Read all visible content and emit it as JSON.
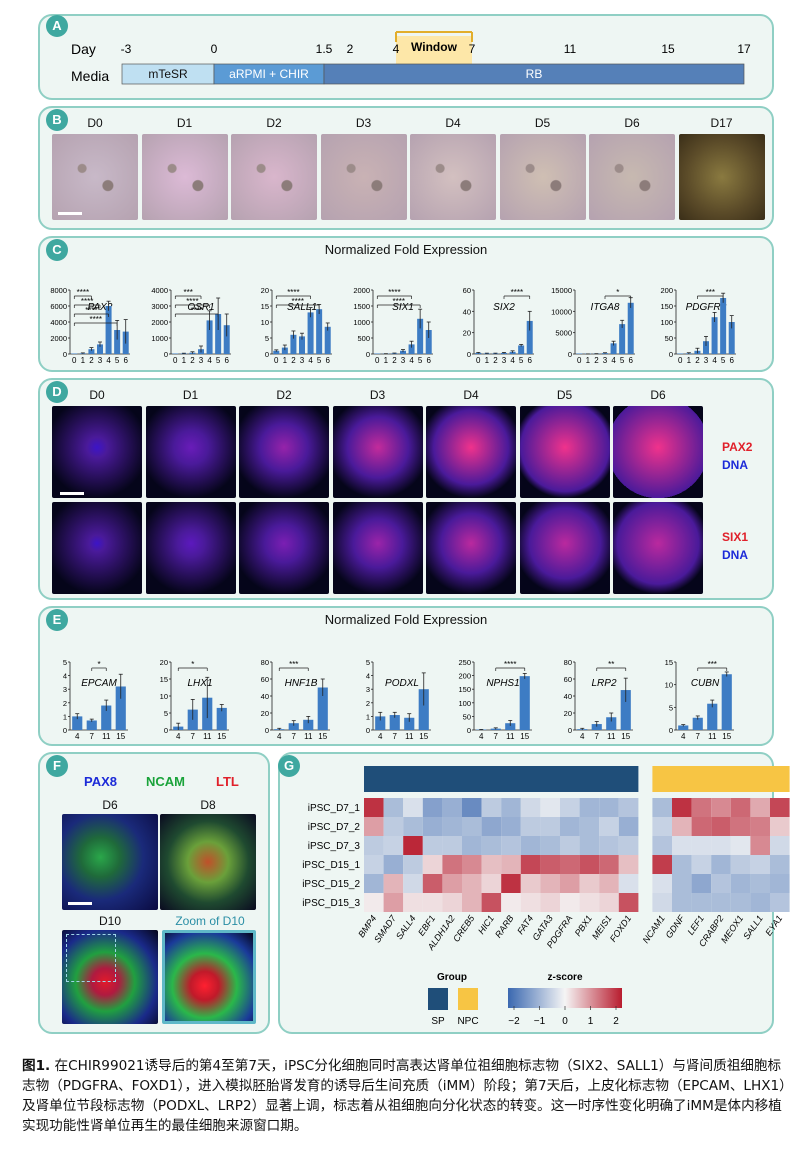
{
  "panel_labels": {
    "a": "A",
    "b": "B",
    "c": "C",
    "d": "D",
    "e": "E",
    "f": "F",
    "g": "G"
  },
  "timeline": {
    "day_label": "Day",
    "media_label": "Media",
    "days": [
      "-3",
      "0",
      "1.5",
      "2",
      "4",
      "7",
      "11",
      "15",
      "17"
    ],
    "window_label": "Window",
    "media": [
      {
        "label": "mTeSR",
        "color": "#bfe0f2"
      },
      {
        "label": "aRPMI + CHIR",
        "color": "#5b9bd5"
      },
      {
        "label": "RB",
        "color": "#5580b8"
      }
    ],
    "window_color": "#fde7a8"
  },
  "brightfield": {
    "days": [
      "D0",
      "D1",
      "D2",
      "D3",
      "D4",
      "D5",
      "D6",
      "D17"
    ]
  },
  "chart_data": [
    {
      "type": "bar",
      "panel": "C",
      "title": "Normalized Fold Expression",
      "gene": "PAX2",
      "categories": [
        "0",
        "1",
        "2",
        "3",
        "4",
        "5",
        "6"
      ],
      "values": [
        0,
        80,
        600,
        1200,
        6000,
        3000,
        2800
      ],
      "errors": [
        0,
        60,
        200,
        300,
        600,
        1200,
        1500
      ],
      "ylim": [
        0,
        8000
      ],
      "yticks": [
        "0",
        "2000",
        "4000",
        "6000",
        "8000"
      ],
      "sig": [
        [
          "0",
          "2",
          "****"
        ],
        [
          "0",
          "3",
          "****"
        ],
        [
          "0",
          "4",
          "****"
        ],
        [
          "0",
          "5",
          "****"
        ]
      ]
    },
    {
      "type": "bar",
      "panel": "C",
      "gene": "OSR1",
      "categories": [
        "0",
        "1",
        "2",
        "3",
        "4",
        "5",
        "6"
      ],
      "values": [
        0,
        30,
        80,
        300,
        2100,
        2500,
        1800
      ],
      "errors": [
        0,
        20,
        60,
        200,
        600,
        1000,
        700
      ],
      "ylim": [
        0,
        4000
      ],
      "yticks": [
        "0",
        "1000",
        "2000",
        "3000",
        "4000"
      ],
      "sig": [
        [
          "0",
          "3",
          "***"
        ],
        [
          "0",
          "4",
          "****"
        ],
        [
          "0",
          "5",
          "****"
        ]
      ]
    },
    {
      "type": "bar",
      "panel": "C",
      "gene": "SALL1",
      "categories": [
        "0",
        "1",
        "2",
        "3",
        "4",
        "5",
        "6"
      ],
      "values": [
        1,
        2,
        6,
        5.5,
        13,
        14,
        8.5
      ],
      "errors": [
        0.3,
        0.8,
        1.2,
        1.0,
        1.5,
        1.5,
        1.2
      ],
      "ylim": [
        0,
        20
      ],
      "yticks": [
        "0",
        "5",
        "10",
        "15",
        "20"
      ],
      "sig": [
        [
          "0",
          "4",
          "****"
        ],
        [
          "0",
          "5",
          "****"
        ]
      ]
    },
    {
      "type": "bar",
      "panel": "C",
      "gene": "SIX1",
      "categories": [
        "0",
        "1",
        "2",
        "3",
        "4",
        "5",
        "6"
      ],
      "values": [
        0,
        5,
        20,
        100,
        300,
        1100,
        750
      ],
      "errors": [
        0,
        5,
        10,
        40,
        100,
        300,
        250
      ],
      "ylim": [
        0,
        2000
      ],
      "yticks": [
        "0",
        "500",
        "1000",
        "1500",
        "2000"
      ],
      "sig": [
        [
          "0",
          "4",
          "****"
        ],
        [
          "0",
          "5",
          "****"
        ]
      ]
    },
    {
      "type": "bar",
      "panel": "C",
      "gene": "SIX2",
      "categories": [
        "0",
        "1",
        "2",
        "3",
        "4",
        "5",
        "6"
      ],
      "values": [
        1,
        0.5,
        0.5,
        1,
        2,
        8,
        31
      ],
      "errors": [
        0.5,
        0.3,
        0.3,
        0.5,
        1,
        1,
        9
      ],
      "ylim": [
        0,
        60
      ],
      "yticks": [
        "0",
        "20",
        "40",
        "60"
      ],
      "sig": [
        [
          "3",
          "6",
          "****"
        ]
      ]
    },
    {
      "type": "bar",
      "panel": "C",
      "gene": "ITGA8",
      "categories": [
        "0",
        "1",
        "2",
        "3",
        "4",
        "5",
        "6"
      ],
      "values": [
        0,
        10,
        50,
        200,
        2500,
        7000,
        12000
      ],
      "errors": [
        0,
        10,
        30,
        100,
        500,
        900,
        1200
      ],
      "ylim": [
        0,
        15000
      ],
      "yticks": [
        "0",
        "5000",
        "10000",
        "15000"
      ],
      "sig": [
        [
          "3",
          "6",
          "*"
        ]
      ]
    },
    {
      "type": "bar",
      "panel": "C",
      "gene": "PDGFRα",
      "categories": [
        "0",
        "1",
        "2",
        "3",
        "4",
        "5",
        "6"
      ],
      "values": [
        0,
        2,
        10,
        40,
        115,
        175,
        100
      ],
      "errors": [
        0,
        2,
        8,
        15,
        15,
        15,
        20
      ],
      "ylim": [
        0,
        200
      ],
      "yticks": [
        "0",
        "50",
        "100",
        "150",
        "200"
      ],
      "sig": [
        [
          "2",
          "5",
          "***"
        ]
      ]
    },
    {
      "type": "bar",
      "panel": "E",
      "title": "Normalized Fold Expression",
      "gene": "EPCAM",
      "categories": [
        "4",
        "7",
        "11",
        "15"
      ],
      "values": [
        1,
        0.7,
        1.8,
        3.2
      ],
      "errors": [
        0.2,
        0.1,
        0.4,
        0.9
      ],
      "ylim": [
        0,
        5
      ],
      "yticks": [
        "0",
        "1",
        "2",
        "3",
        "4",
        "5"
      ],
      "sig": [
        [
          "7",
          "11",
          "*"
        ]
      ]
    },
    {
      "type": "bar",
      "panel": "E",
      "gene": "LHX1",
      "categories": [
        "4",
        "7",
        "11",
        "15"
      ],
      "values": [
        1,
        6,
        9.5,
        6.5
      ],
      "errors": [
        1,
        3,
        6,
        1
      ],
      "ylim": [
        0,
        20
      ],
      "yticks": [
        "0",
        "5",
        "10",
        "15",
        "20"
      ],
      "sig": [
        [
          "4",
          "11",
          "*"
        ]
      ]
    },
    {
      "type": "bar",
      "panel": "E",
      "gene": "HNF1B",
      "categories": [
        "4",
        "7",
        "11",
        "15"
      ],
      "values": [
        1,
        8,
        12,
        50
      ],
      "errors": [
        1,
        3,
        4,
        10
      ],
      "ylim": [
        0,
        80
      ],
      "yticks": [
        "0",
        "20",
        "40",
        "60",
        "80"
      ],
      "sig": [
        [
          "4",
          "11",
          "***"
        ]
      ]
    },
    {
      "type": "bar",
      "panel": "E",
      "gene": "PODXL",
      "categories": [
        "4",
        "7",
        "11",
        "15"
      ],
      "values": [
        1,
        1.1,
        0.9,
        3
      ],
      "errors": [
        0.3,
        0.2,
        0.3,
        1.2
      ],
      "ylim": [
        0,
        5
      ],
      "yticks": [
        "0",
        "1",
        "2",
        "3",
        "4",
        "5"
      ],
      "sig": []
    },
    {
      "type": "bar",
      "panel": "E",
      "gene": "NPHS1",
      "categories": [
        "4",
        "7",
        "11",
        "15"
      ],
      "values": [
        1,
        5,
        25,
        198
      ],
      "errors": [
        1,
        3,
        10,
        10
      ],
      "ylim": [
        0,
        250
      ],
      "yticks": [
        "0",
        "50",
        "100",
        "150",
        "200",
        "250"
      ],
      "sig": [
        [
          "7",
          "15",
          "****"
        ]
      ]
    },
    {
      "type": "bar",
      "panel": "E",
      "gene": "LRP2",
      "categories": [
        "4",
        "7",
        "11",
        "15"
      ],
      "values": [
        1,
        7,
        15,
        47
      ],
      "errors": [
        1,
        3,
        5,
        14
      ],
      "ylim": [
        0,
        80
      ],
      "yticks": [
        "0",
        "20",
        "40",
        "60",
        "80"
      ],
      "sig": [
        [
          "7",
          "15",
          "**"
        ]
      ]
    },
    {
      "type": "bar",
      "panel": "E",
      "gene": "CUBN",
      "categories": [
        "4",
        "7",
        "11",
        "15"
      ],
      "values": [
        1,
        2.7,
        5.8,
        12.3
      ],
      "errors": [
        0.2,
        0.4,
        0.8,
        0.5
      ],
      "ylim": [
        0,
        15
      ],
      "yticks": [
        "0",
        "5",
        "10",
        "15"
      ],
      "sig": [
        [
          "7",
          "15",
          "***"
        ]
      ]
    },
    {
      "type": "heatmap",
      "panel": "G",
      "rows": [
        "iPSC_D7_1",
        "iPSC_D7_2",
        "iPSC_D7_3",
        "iPSC_D15_1",
        "iPSC_D15_2",
        "iPSC_D15_3"
      ],
      "cols_sp": [
        "BMP4",
        "SMAD7",
        "SALL4",
        "EBF1",
        "ALDH1A2",
        "CREB5",
        "HIC1",
        "RARB",
        "FAT4",
        "GATA3",
        "PDGFRA",
        "PBX1",
        "MEIS1",
        "FOXD1"
      ],
      "cols_npc": [
        "NCAM1",
        "GDNF",
        "LEF1",
        "CRABP2",
        "MEOX1",
        "SALL1",
        "EYA1"
      ],
      "values_sp": [
        [
          1.8,
          -0.8,
          -0.3,
          -1.2,
          -1.0,
          -1.5,
          -0.6,
          -0.9,
          -0.4,
          -0.2,
          -0.5,
          -0.9,
          -0.9,
          -0.7
        ],
        [
          0.8,
          -0.6,
          -0.8,
          -1.0,
          -0.9,
          -0.8,
          -1.1,
          -1.0,
          -0.6,
          -0.6,
          -0.9,
          -0.8,
          -0.5,
          -1.0
        ],
        [
          -0.6,
          -0.5,
          1.9,
          -0.6,
          -0.6,
          -0.9,
          -0.8,
          -0.7,
          -0.9,
          -0.8,
          -0.6,
          -0.8,
          -0.7,
          -0.6
        ],
        [
          -0.5,
          -1.0,
          -0.6,
          0.3,
          1.2,
          1.0,
          0.5,
          0.6,
          1.6,
          1.4,
          1.3,
          1.5,
          1.3,
          0.5
        ],
        [
          -0.9,
          0.6,
          -0.4,
          1.4,
          0.8,
          0.6,
          0.3,
          1.8,
          0.4,
          0.6,
          0.8,
          0.4,
          0.6,
          -0.3
        ],
        [
          0.1,
          0.8,
          0.2,
          0.2,
          0.3,
          0.6,
          1.5,
          0.1,
          0.2,
          0.3,
          0.1,
          0.2,
          0.3,
          1.5
        ]
      ],
      "values_npc": [
        [
          -0.8,
          1.8,
          1.2,
          1.0,
          1.3,
          0.7,
          1.6
        ],
        [
          -0.5,
          0.6,
          1.3,
          1.4,
          1.2,
          1.1,
          0.4
        ],
        [
          -0.7,
          -0.3,
          -0.3,
          -0.3,
          -0.2,
          1.0,
          -0.4
        ],
        [
          1.7,
          -0.8,
          -0.5,
          -0.9,
          -0.6,
          -0.5,
          -0.8
        ],
        [
          -0.3,
          -0.8,
          -1.1,
          -0.7,
          -0.9,
          -0.8,
          -0.9
        ],
        [
          -0.4,
          -0.8,
          -0.8,
          -0.8,
          -0.8,
          -0.9,
          -0.7
        ]
      ],
      "groups": [
        {
          "name": "SP",
          "color": "#1f4e79"
        },
        {
          "name": "NPC",
          "color": "#f7c544"
        }
      ],
      "group_legend_title": "Group",
      "zscore_title": "z-score",
      "zscore_ticks": [
        "−2",
        "−1",
        "0",
        "1",
        "2"
      ],
      "colors": {
        "low": "#3a68b0",
        "mid": "#f5f5f5",
        "high": "#b81c2e"
      }
    }
  ],
  "fluorescence_d": {
    "days": [
      "D0",
      "D1",
      "D2",
      "D3",
      "D4",
      "D5",
      "D6"
    ],
    "row1_marker": "PAX2",
    "row2_marker": "SIX1",
    "dna_label": "DNA",
    "marker_color": "#e0202a",
    "dna_color": "#1c2ad8"
  },
  "panel_f": {
    "pax8": "PAX8",
    "ncam": "NCAM",
    "ltl": "LTL",
    "d6": "D6",
    "d8": "D8",
    "d10": "D10",
    "zoom": "Zoom of D10"
  },
  "caption": {
    "fig": "图1.",
    "text": " 在CHIR99021诱导后的第4至第7天，iPSC分化细胞同时高表达肾单位祖细胞标志物（SIX2、SALL1）与肾间质祖细胞标志物（PDGFRA、FOXD1），进入模拟胚胎肾发育的诱导后生间充质（iMM）阶段；第7天后，上皮化标志物（EPCAM、LHX1）及肾单位节段标志物（PODXL、LRP2）显著上调，标志着从祖细胞向分化状态的转变。这一时序性变化明确了iMM是体内移植实现功能性肾单位再生的最佳细胞来源窗口期。"
  }
}
